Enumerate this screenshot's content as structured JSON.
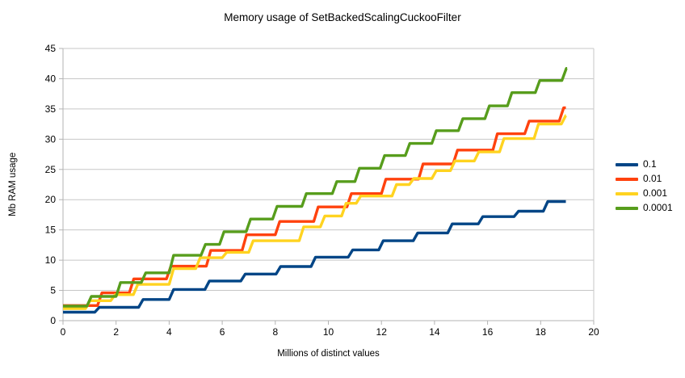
{
  "chart_data": {
    "type": "line",
    "subtype": "step",
    "title": "Memory usage of SetBackedScalingCuckooFilter",
    "xlabel": "Millions of distinct values",
    "ylabel": "Mb RAM usage",
    "xlim": [
      0,
      20
    ],
    "ylim": [
      0,
      45
    ],
    "x_ticks": [
      0,
      2,
      4,
      6,
      8,
      10,
      12,
      14,
      16,
      18,
      20
    ],
    "y_ticks": [
      0,
      5,
      10,
      15,
      20,
      25,
      30,
      35,
      40,
      45
    ],
    "grid": true,
    "legend_position": "right",
    "colors": {
      "grid": "#c7c7c7",
      "axis": "#b3b3b3",
      "text": "#000000",
      "background": "#ffffff"
    },
    "series": [
      {
        "name": "0.1",
        "color": "#004586",
        "x_end": 18.95,
        "points": [
          [
            0,
            1.4
          ],
          [
            1.2,
            2.2
          ],
          [
            2.85,
            3.5
          ],
          [
            4.0,
            5.15
          ],
          [
            5.35,
            6.55
          ],
          [
            6.7,
            7.7
          ],
          [
            8.03,
            8.95
          ],
          [
            9.35,
            10.5
          ],
          [
            10.75,
            11.7
          ],
          [
            11.9,
            13.2
          ],
          [
            13.2,
            14.5
          ],
          [
            14.5,
            16.0
          ],
          [
            15.65,
            17.2
          ],
          [
            17.0,
            18.1
          ],
          [
            18.1,
            19.7
          ]
        ]
      },
      {
        "name": "0.01",
        "color": "#ff420e",
        "x_end": 18.95,
        "points": [
          [
            0,
            2.5
          ],
          [
            1.3,
            4.6
          ],
          [
            2.5,
            6.9
          ],
          [
            3.9,
            9.0
          ],
          [
            5.4,
            11.6
          ],
          [
            6.75,
            14.2
          ],
          [
            8.0,
            16.4
          ],
          [
            9.45,
            18.8
          ],
          [
            10.7,
            21.0
          ],
          [
            12.0,
            23.4
          ],
          [
            13.4,
            25.9
          ],
          [
            14.7,
            28.2
          ],
          [
            16.2,
            30.9
          ],
          [
            17.4,
            33.0
          ],
          [
            18.7,
            35.2
          ]
        ]
      },
      {
        "name": "0.001",
        "color": "#ffd320",
        "x_end": 18.95,
        "points": [
          [
            0,
            2.0
          ],
          [
            0.85,
            3.3
          ],
          [
            1.8,
            4.3
          ],
          [
            2.65,
            6.0
          ],
          [
            4.0,
            8.6
          ],
          [
            5.0,
            10.4
          ],
          [
            6.0,
            11.3
          ],
          [
            7.0,
            13.2
          ],
          [
            8.9,
            15.5
          ],
          [
            9.7,
            17.3
          ],
          [
            10.5,
            19.4
          ],
          [
            11.05,
            20.6
          ],
          [
            12.4,
            22.5
          ],
          [
            13.05,
            23.5
          ],
          [
            13.9,
            24.8
          ],
          [
            14.6,
            26.4
          ],
          [
            15.5,
            27.9
          ],
          [
            16.45,
            30.1
          ],
          [
            17.75,
            32.5
          ],
          [
            18.78,
            33.9
          ]
        ]
      },
      {
        "name": "0.0001",
        "color": "#579d1c",
        "x_end": 19.0,
        "points": [
          [
            0,
            2.4
          ],
          [
            0.9,
            4.0
          ],
          [
            2.0,
            6.3
          ],
          [
            2.95,
            7.9
          ],
          [
            4.0,
            10.8
          ],
          [
            5.2,
            12.6
          ],
          [
            5.9,
            14.7
          ],
          [
            6.9,
            16.8
          ],
          [
            7.9,
            18.9
          ],
          [
            9.0,
            21.0
          ],
          [
            10.15,
            23.0
          ],
          [
            11.0,
            25.2
          ],
          [
            11.95,
            27.3
          ],
          [
            12.9,
            29.3
          ],
          [
            13.9,
            31.4
          ],
          [
            14.9,
            33.4
          ],
          [
            15.9,
            35.5
          ],
          [
            16.75,
            37.7
          ],
          [
            17.8,
            39.7
          ],
          [
            18.8,
            41.7
          ]
        ]
      }
    ]
  }
}
